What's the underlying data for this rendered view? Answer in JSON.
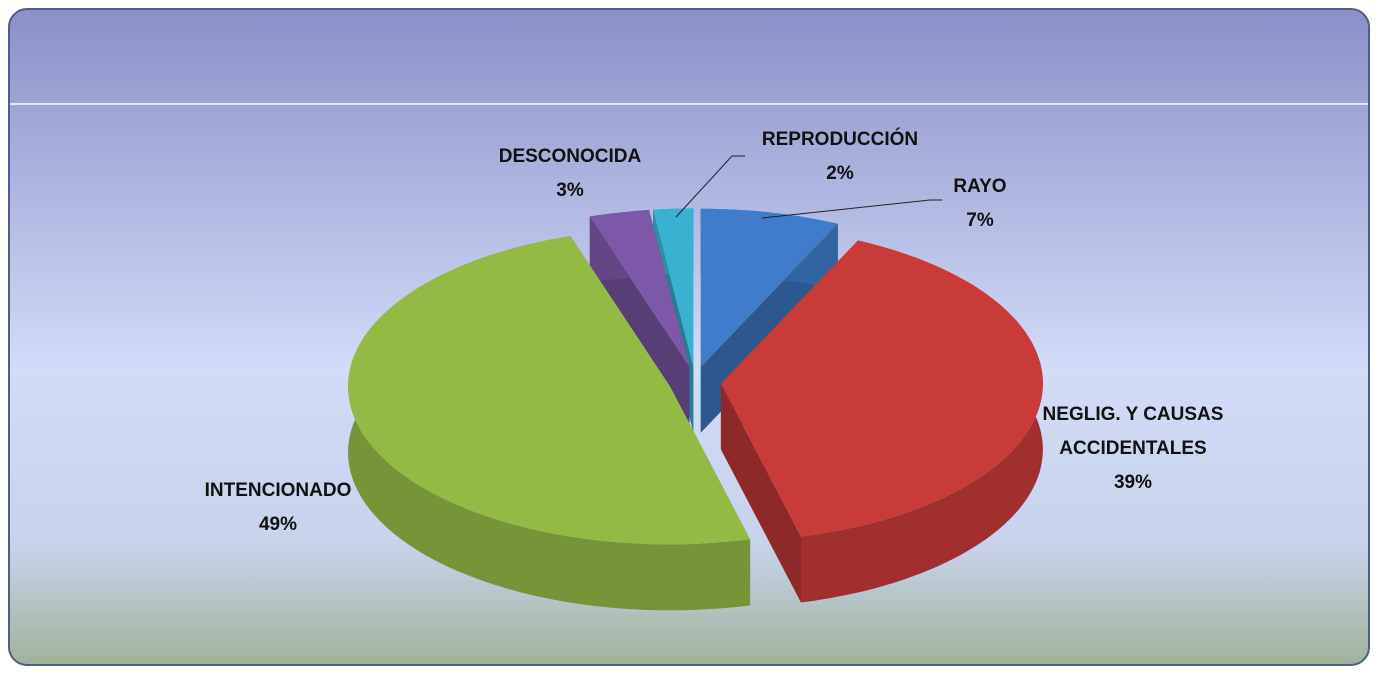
{
  "chart_data": {
    "type": "pie3d",
    "categories": [
      "RAYO",
      "NEGLIG. Y CAUSAS ACCIDENTALES",
      "INTENCIONADO",
      "DESCONOCIDA",
      "REPRODUCCIÓN"
    ],
    "values": [
      7,
      39,
      49,
      3,
      2
    ],
    "value_labels": [
      "7%",
      "39%",
      "49%",
      "3%",
      "2%"
    ],
    "colors": [
      "#3f7dcc",
      "#c93b39",
      "#94ba46",
      "#7d58a8",
      "#38b2d0"
    ]
  }
}
